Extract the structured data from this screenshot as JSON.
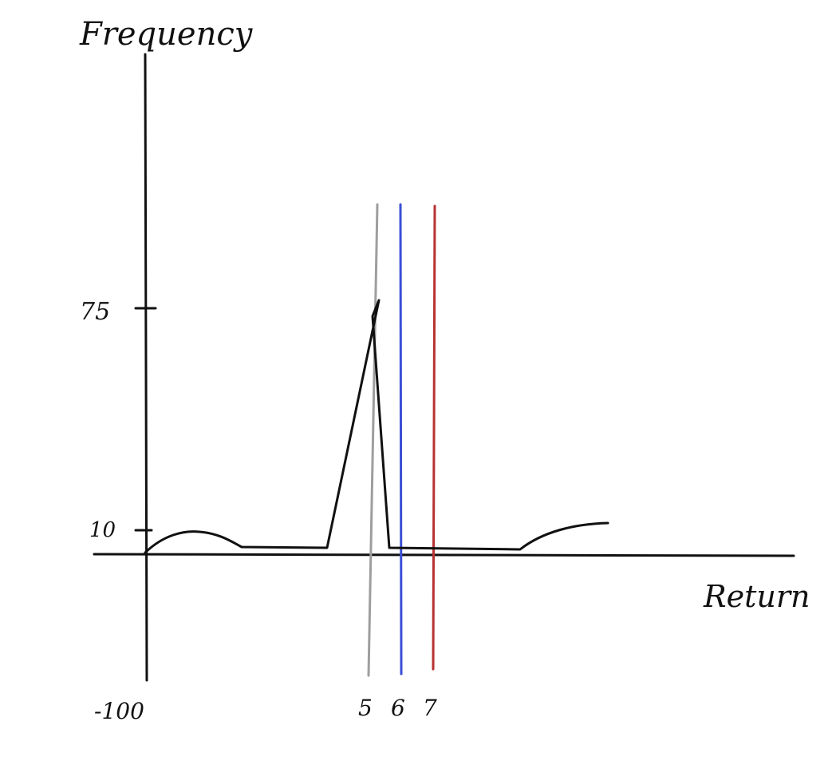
{
  "chart_data": {
    "type": "line",
    "xlabel": "Return",
    "ylabel": "Frequency",
    "grid": false,
    "legend": "none",
    "x_ticks": [
      {
        "value": -100,
        "label": "-100"
      },
      {
        "value": 5,
        "label": "5"
      },
      {
        "value": 6,
        "label": "6"
      },
      {
        "value": 7,
        "label": "7"
      }
    ],
    "y_ticks": [
      {
        "value": 10,
        "label": "10"
      },
      {
        "value": 75,
        "label": "75"
      }
    ],
    "series": [
      {
        "color": "#111111",
        "points": [
          [
            -100,
            0
          ],
          [
            -80,
            7
          ],
          [
            -60,
            2
          ],
          [
            -10,
            2
          ],
          [
            5,
            75
          ],
          [
            6,
            2
          ],
          [
            40,
            2
          ],
          [
            60,
            8
          ],
          [
            70,
            10
          ]
        ]
      }
    ],
    "reference_lines": [
      {
        "x": 5,
        "label": "5",
        "color": "#9e9e9e"
      },
      {
        "x": 6,
        "label": "6",
        "color": "#3a4fd6"
      },
      {
        "x": 7,
        "label": "7",
        "color": "#b83232"
      }
    ]
  }
}
